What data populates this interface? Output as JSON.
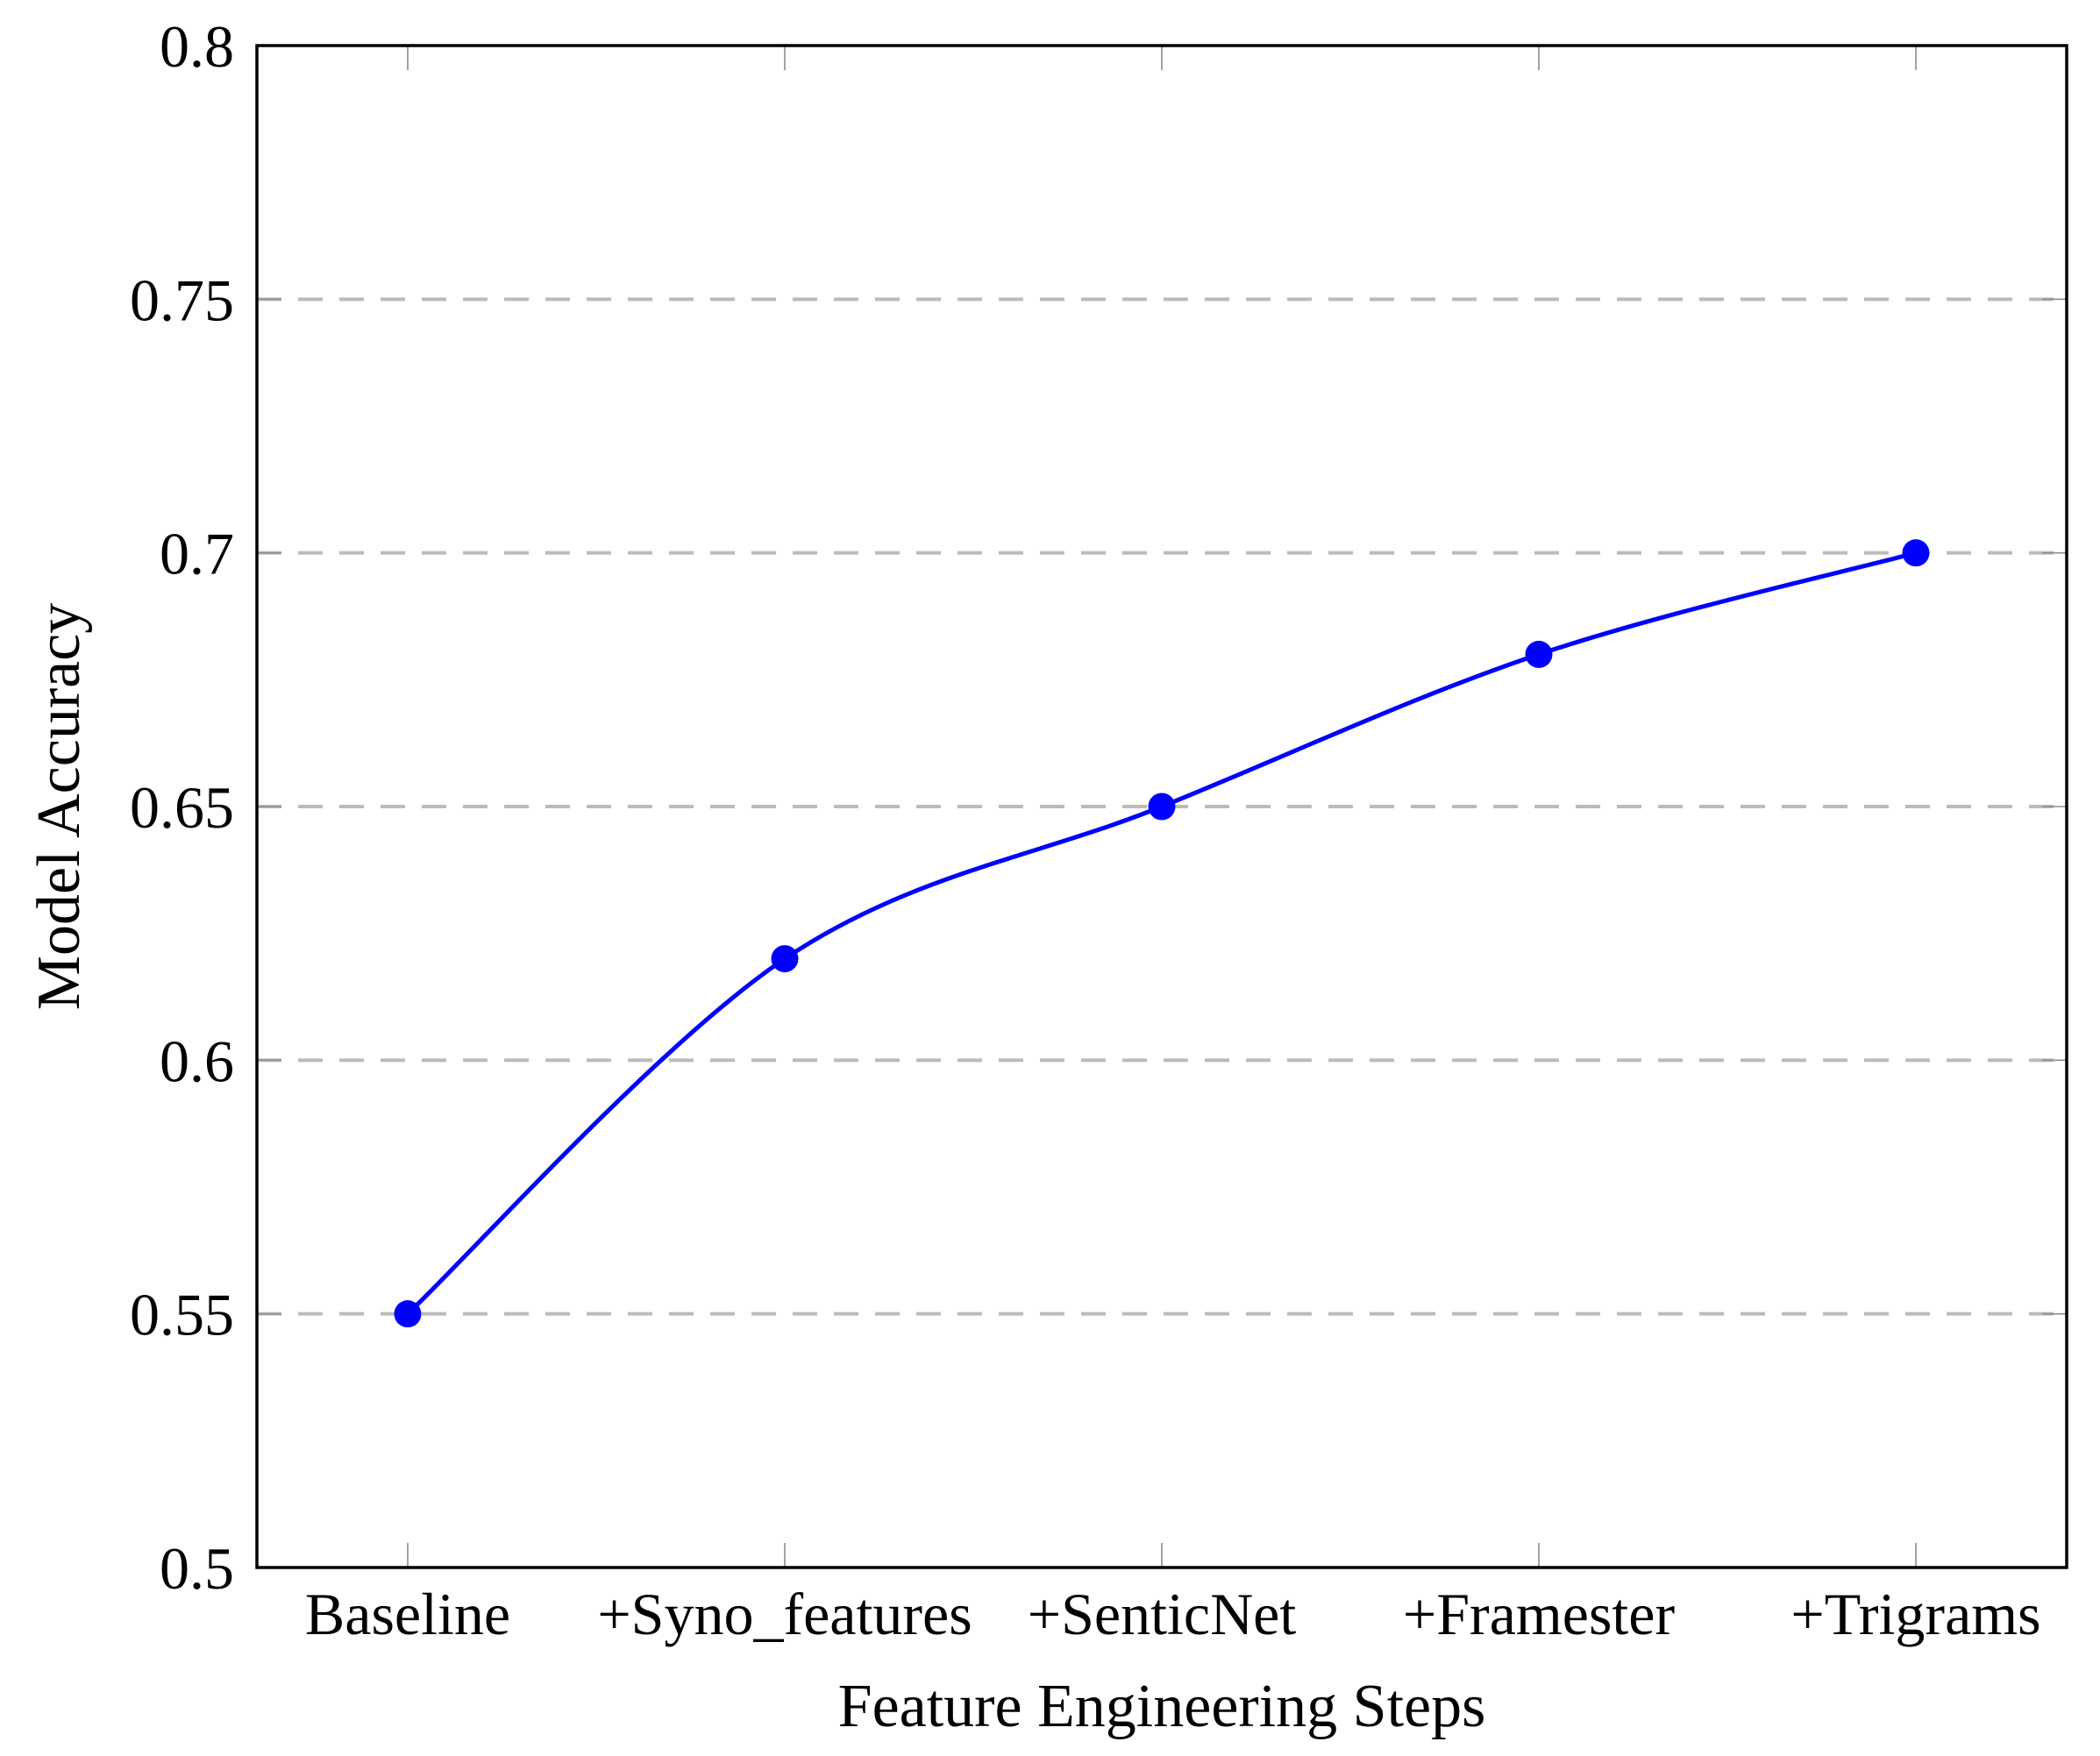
{
  "chart_data": {
    "type": "line",
    "categories": [
      "Baseline",
      "+Syno_features",
      "+SenticNet",
      "+Framester",
      "+Trigrams"
    ],
    "values": [
      0.55,
      0.62,
      0.65,
      0.68,
      0.7
    ],
    "series": [
      {
        "name": "Model Accuracy",
        "values": [
          0.55,
          0.62,
          0.65,
          0.68,
          0.7
        ]
      }
    ],
    "xlabel": "Feature Engineering Steps",
    "ylabel": "Model Accuracy",
    "ylim": [
      0.5,
      0.8
    ],
    "ytick_step": 0.05,
    "ytick_labels": [
      "0.5",
      "0.55",
      "0.6",
      "0.65",
      "0.7",
      "0.75",
      "0.8"
    ],
    "grid": "horizontal-dashed-interior",
    "legend": "none",
    "smooth": true,
    "marker": "filled-circle",
    "colors": {
      "series": "#0000ff",
      "gridline": "#bbbbbb",
      "tick": "#8c8c8c",
      "axis_frame": "#000000",
      "text": "#000000",
      "background": "#ffffff"
    }
  }
}
